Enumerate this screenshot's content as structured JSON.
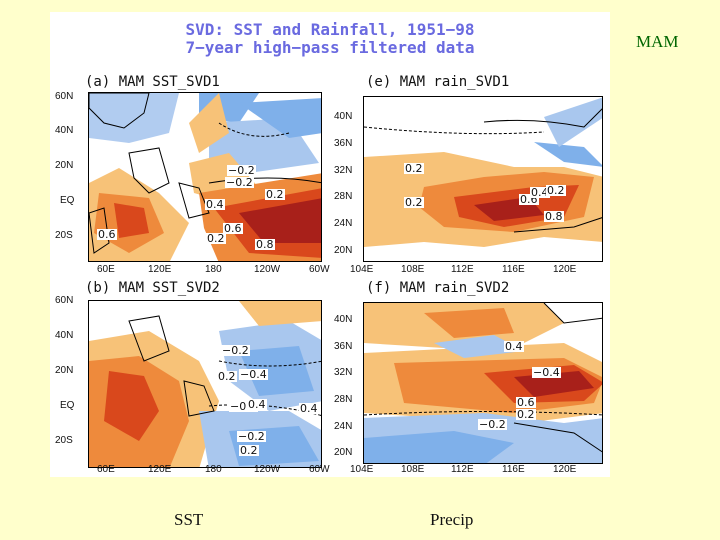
{
  "slide": {
    "corner_label": "MAM",
    "bottom_left": "SST",
    "bottom_right": "Precip",
    "colors": {
      "background": "#ffffcc",
      "title": "#6a6ae0",
      "corner": "#006600"
    }
  },
  "figure": {
    "title_line1": "SVD: SST and Rainfall, 1951−98",
    "title_line2": "7−year high−pass filtered data",
    "panels": [
      {
        "title": "(a) MAM SST_SVD1",
        "y_ticks": [
          "60N",
          "40N",
          "20N",
          "EQ",
          "20S"
        ],
        "x_ticks": [
          "60E",
          "120E",
          "180",
          "120W",
          "60W"
        ],
        "contour_labels": [
          "−0.2",
          "−0.2",
          "0.2",
          "0.4",
          "0.6",
          "0.2",
          "0.8",
          "0.6"
        ]
      },
      {
        "title": "(e) MAM rain_SVD1",
        "y_ticks": [
          "40N",
          "36N",
          "32N",
          "28N",
          "24N",
          "20N"
        ],
        "x_ticks": [
          "104E",
          "108E",
          "112E",
          "116E",
          "120E"
        ],
        "contour_labels": [
          "0.2",
          "0.2",
          "0.6",
          "0.4",
          "0.2",
          "0.8"
        ]
      },
      {
        "title": "(b) MAM SST_SVD2",
        "y_ticks": [
          "60N",
          "40N",
          "20N",
          "EQ",
          "20S"
        ],
        "x_ticks": [
          "60E",
          "120E",
          "180",
          "120W",
          "60W"
        ],
        "contour_labels": [
          "−0.2",
          "0.2",
          "−0.4",
          "−0.2",
          "0.4",
          "0.4",
          "−0.2",
          "0.2"
        ]
      },
      {
        "title": "(f) MAM rain_SVD2",
        "y_ticks": [
          "40N",
          "36N",
          "32N",
          "28N",
          "24N",
          "20N"
        ],
        "x_ticks": [
          "104E",
          "108E",
          "112E",
          "116E",
          "120E"
        ],
        "contour_labels": [
          "0.4",
          "−0.4",
          "0.6",
          "0.2",
          "−0.2"
        ]
      }
    ]
  }
}
